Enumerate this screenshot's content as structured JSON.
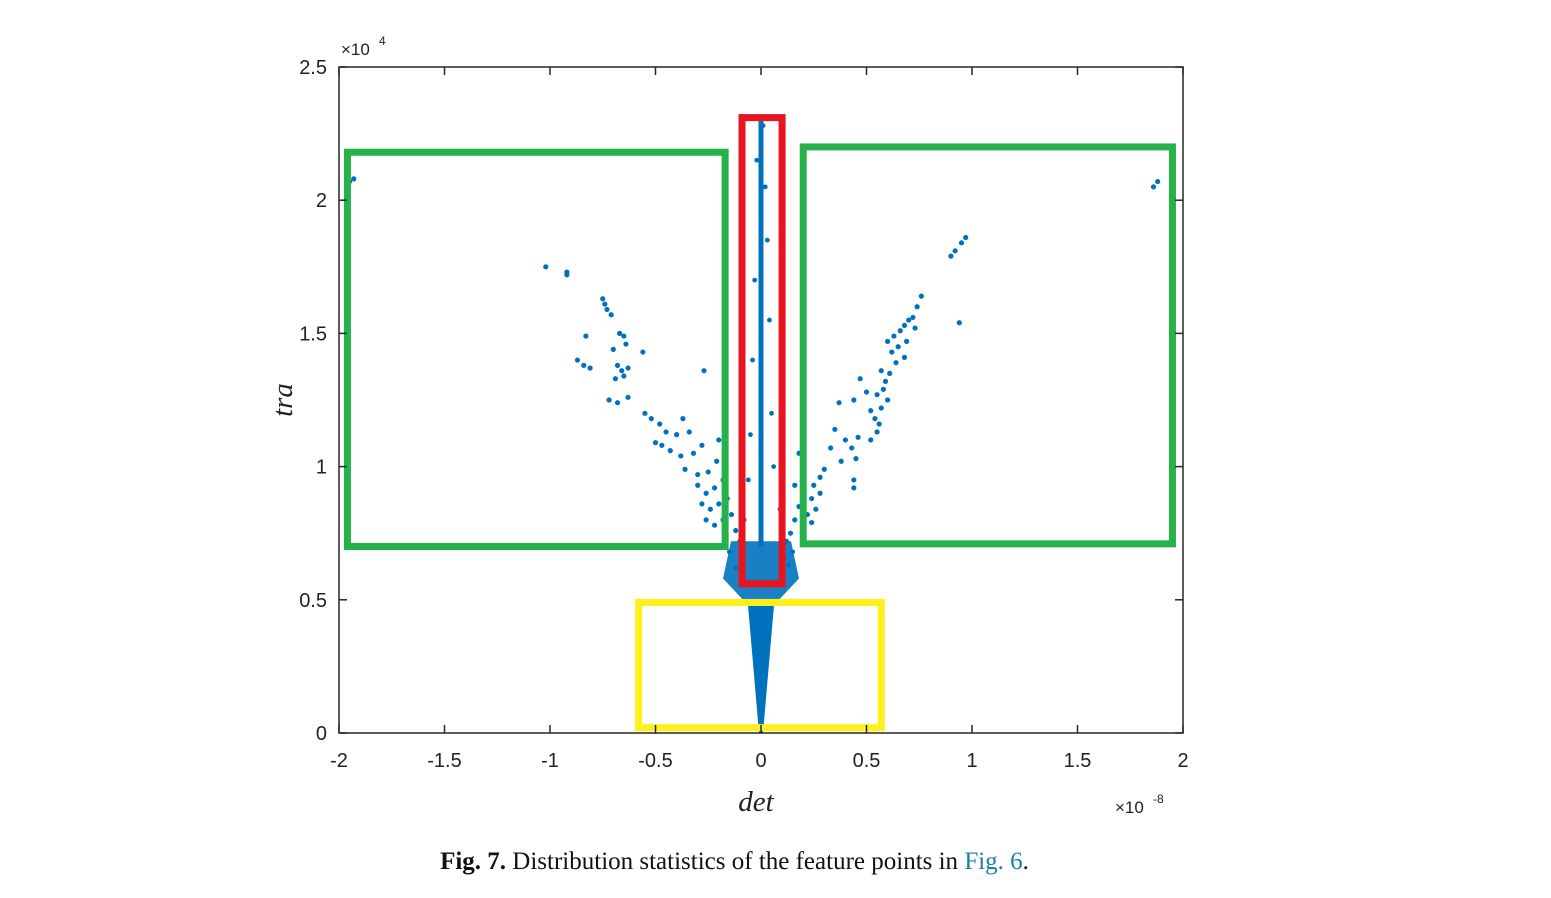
{
  "chart_data": {
    "type": "scatter",
    "xlabel": "det",
    "ylabel": "tra",
    "x_exponent": "-8",
    "y_exponent": "4",
    "exponent_base": "×10",
    "xlim": [
      -2,
      2
    ],
    "ylim": [
      0,
      2.5
    ],
    "x_ticks": [
      "-2",
      "-1.5",
      "-1",
      "-0.5",
      "0",
      "0.5",
      "1",
      "1.5",
      "2"
    ],
    "y_ticks": [
      "0",
      "0.5",
      "1",
      "1.5",
      "2",
      "2.5"
    ],
    "grid": false,
    "marker_color": "#0072bd",
    "points": [
      [
        -1.93,
        2.08
      ],
      [
        -1.95,
        2.07
      ],
      [
        -1.02,
        1.75
      ],
      [
        -0.92,
        1.73
      ],
      [
        -0.92,
        1.72
      ],
      [
        -0.75,
        1.63
      ],
      [
        -0.74,
        1.61
      ],
      [
        -0.73,
        1.59
      ],
      [
        -0.71,
        1.57
      ],
      [
        -0.83,
        1.49
      ],
      [
        -0.67,
        1.5
      ],
      [
        -0.65,
        1.49
      ],
      [
        -0.64,
        1.46
      ],
      [
        -0.7,
        1.44
      ],
      [
        -0.56,
        1.43
      ],
      [
        -0.87,
        1.4
      ],
      [
        -0.84,
        1.38
      ],
      [
        -0.81,
        1.37
      ],
      [
        -0.68,
        1.38
      ],
      [
        -0.66,
        1.36
      ],
      [
        -0.63,
        1.37
      ],
      [
        -0.65,
        1.34
      ],
      [
        -0.69,
        1.33
      ],
      [
        -0.27,
        1.36
      ],
      [
        -0.72,
        1.25
      ],
      [
        -0.68,
        1.24
      ],
      [
        -0.63,
        1.26
      ],
      [
        -0.55,
        1.2
      ],
      [
        -0.52,
        1.18
      ],
      [
        -0.48,
        1.16
      ],
      [
        -0.37,
        1.18
      ],
      [
        -0.45,
        1.13
      ],
      [
        -0.4,
        1.12
      ],
      [
        -0.34,
        1.13
      ],
      [
        -0.5,
        1.09
      ],
      [
        -0.47,
        1.08
      ],
      [
        -0.43,
        1.06
      ],
      [
        -0.38,
        1.04
      ],
      [
        -0.32,
        1.05
      ],
      [
        -0.28,
        1.08
      ],
      [
        -0.2,
        1.1
      ],
      [
        -0.36,
        0.99
      ],
      [
        -0.3,
        0.97
      ],
      [
        -0.25,
        0.98
      ],
      [
        -0.21,
        1.02
      ],
      [
        -0.3,
        0.93
      ],
      [
        -0.26,
        0.9
      ],
      [
        -0.22,
        0.92
      ],
      [
        -0.18,
        0.95
      ],
      [
        -0.28,
        0.86
      ],
      [
        -0.24,
        0.84
      ],
      [
        -0.2,
        0.86
      ],
      [
        -0.16,
        0.88
      ],
      [
        -0.26,
        0.8
      ],
      [
        -0.22,
        0.78
      ],
      [
        -0.18,
        0.8
      ],
      [
        -0.14,
        0.82
      ],
      [
        -0.12,
        0.76
      ],
      [
        -0.1,
        0.72
      ],
      [
        1.88,
        2.07
      ],
      [
        1.86,
        2.05
      ],
      [
        0.97,
        1.86
      ],
      [
        0.95,
        1.84
      ],
      [
        0.92,
        1.81
      ],
      [
        0.9,
        1.79
      ],
      [
        0.76,
        1.64
      ],
      [
        0.74,
        1.6
      ],
      [
        0.72,
        1.56
      ],
      [
        0.7,
        1.55
      ],
      [
        0.68,
        1.53
      ],
      [
        0.66,
        1.51
      ],
      [
        0.73,
        1.52
      ],
      [
        0.94,
        1.54
      ],
      [
        0.63,
        1.49
      ],
      [
        0.6,
        1.47
      ],
      [
        0.69,
        1.47
      ],
      [
        0.65,
        1.45
      ],
      [
        0.62,
        1.43
      ],
      [
        0.68,
        1.41
      ],
      [
        0.64,
        1.39
      ],
      [
        0.57,
        1.36
      ],
      [
        0.61,
        1.35
      ],
      [
        0.59,
        1.32
      ],
      [
        0.47,
        1.33
      ],
      [
        0.58,
        1.29
      ],
      [
        0.55,
        1.27
      ],
      [
        0.5,
        1.28
      ],
      [
        0.6,
        1.25
      ],
      [
        0.44,
        1.25
      ],
      [
        0.57,
        1.22
      ],
      [
        0.52,
        1.21
      ],
      [
        0.54,
        1.18
      ],
      [
        0.56,
        1.16
      ],
      [
        0.37,
        1.24
      ],
      [
        0.55,
        1.13
      ],
      [
        0.52,
        1.1
      ],
      [
        0.46,
        1.11
      ],
      [
        0.35,
        1.14
      ],
      [
        0.4,
        1.1
      ],
      [
        0.43,
        1.07
      ],
      [
        0.33,
        1.07
      ],
      [
        0.45,
        1.03
      ],
      [
        0.38,
        1.02
      ],
      [
        0.3,
        0.99
      ],
      [
        0.44,
        0.95
      ],
      [
        0.44,
        0.92
      ],
      [
        0.28,
        0.96
      ],
      [
        0.25,
        0.93
      ],
      [
        0.18,
        1.05
      ],
      [
        0.28,
        0.9
      ],
      [
        0.24,
        0.88
      ],
      [
        0.2,
        0.9
      ],
      [
        0.16,
        0.93
      ],
      [
        0.26,
        0.84
      ],
      [
        0.22,
        0.82
      ],
      [
        0.18,
        0.85
      ],
      [
        0.24,
        0.79
      ],
      [
        0.2,
        0.77
      ],
      [
        0.16,
        0.8
      ],
      [
        0.14,
        0.75
      ],
      [
        0.12,
        0.72
      ]
    ],
    "central_column": {
      "x": 0,
      "tra_range": [
        0.0,
        2.3
      ]
    },
    "highlight_boxes": [
      {
        "color": "#26b14a",
        "x_range": [
          -1.96,
          -0.17
        ],
        "y_range": [
          0.7,
          2.18
        ]
      },
      {
        "color": "#26b14a",
        "x_range": [
          0.2,
          1.95
        ],
        "y_range": [
          0.71,
          2.2
        ]
      },
      {
        "color": "#e8141f",
        "x_range": [
          -0.09,
          0.1
        ],
        "y_range": [
          0.56,
          2.31
        ]
      },
      {
        "color": "#fff01a",
        "x_range": [
          -0.58,
          0.57
        ],
        "y_range": [
          0.02,
          0.49
        ]
      }
    ]
  },
  "caption": {
    "label": "Fig. 7.",
    "text": "Distribution statistics of the feature points in",
    "ref": "Fig. 6",
    "end": "."
  }
}
